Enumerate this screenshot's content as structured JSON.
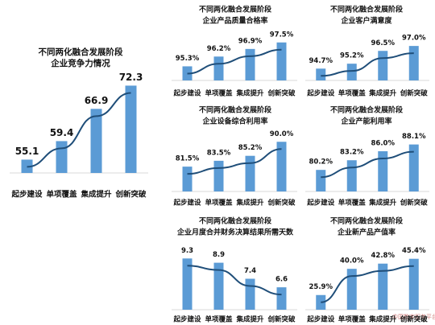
{
  "chart_data": [
    {
      "type": "bar",
      "title": [
        "不同两化融合发展阶段",
        "企业竞争力情况"
      ],
      "categories": [
        "起步建设",
        "单项覆盖",
        "集成提升",
        "创新突破"
      ],
      "values": [
        55.1,
        59.4,
        66.9,
        72.3
      ],
      "color": "#5b9bd5",
      "line_color": "#1f4e79",
      "ylim": [
        52,
        75
      ]
    },
    {
      "type": "bar",
      "title": [
        "不同两化融合发展阶段",
        "企业产品质量合格率"
      ],
      "categories": [
        "起步建设",
        "单项覆盖",
        "集成提升",
        "创新突破"
      ],
      "values": [
        95.3,
        96.2,
        96.9,
        97.5
      ],
      "value_labels": [
        "95.3%",
        "96.2%",
        "96.9%",
        "97.5%"
      ],
      "color": "#5b9bd5",
      "line_color": "#1f4e79",
      "ylim": [
        94,
        98
      ]
    },
    {
      "type": "bar",
      "title": [
        "不同两化融合发展阶段",
        "企业客户满意度"
      ],
      "categories": [
        "起步建设",
        "单项覆盖",
        "集成提升",
        "创新突破"
      ],
      "values": [
        94.7,
        95.2,
        96.5,
        97.0
      ],
      "value_labels": [
        "94.7%",
        "95.2%",
        "96.5%",
        "97.0%"
      ],
      "color": "#5b9bd5",
      "line_color": "#1f4e79",
      "ylim": [
        93.5,
        97.5
      ]
    },
    {
      "type": "bar",
      "title": [
        "不同两化融合发展阶段",
        "企业设备综合利用率"
      ],
      "categories": [
        "起步建设",
        "单项覆盖",
        "集成提升",
        "创新突破"
      ],
      "values": [
        81.5,
        83.5,
        85.2,
        90.0
      ],
      "value_labels": [
        "81.5%",
        "83.5%",
        "85.2%",
        "90.0%"
      ],
      "color": "#5b9bd5",
      "line_color": "#1f4e79",
      "ylim": [
        73,
        92
      ]
    },
    {
      "type": "bar",
      "title": [
        "不同两化融合发展阶段",
        "企业产能利用率"
      ],
      "categories": [
        "起步建设",
        "单项覆盖",
        "集成提升",
        "创新突破"
      ],
      "values": [
        80.2,
        83.2,
        86.0,
        88.1
      ],
      "value_labels": [
        "80.2%",
        "83.2%",
        "86.0%",
        "88.1%"
      ],
      "color": "#5b9bd5",
      "line_color": "#1f4e79",
      "ylim": [
        73.5,
        90
      ]
    },
    {
      "type": "bar",
      "title": [
        "不同两化融合发展阶段",
        "企业月度合并财务决算结果所需天数"
      ],
      "categories": [
        "起步建设",
        "单项覆盖",
        "集成提升",
        "创新突破"
      ],
      "values": [
        9.3,
        8.9,
        7.4,
        6.6
      ],
      "color": "#5b9bd5",
      "line_color": "#1f4e79",
      "ylim": [
        4.5,
        10
      ]
    },
    {
      "type": "bar",
      "title": [
        "不同两化融合发展阶段",
        "企业新产品产值率"
      ],
      "categories": [
        "起步建设",
        "单项覆盖",
        "集成提升",
        "创新突破"
      ],
      "values": [
        25.9,
        40.0,
        42.8,
        45.4
      ],
      "value_labels": [
        "25.9%",
        "40.0%",
        "42.8%",
        "45.4%"
      ],
      "color": "#5b9bd5",
      "line_color": "#1f4e79",
      "ylim": [
        18,
        47
      ]
    }
  ],
  "watermark": "中国数字服务平台"
}
